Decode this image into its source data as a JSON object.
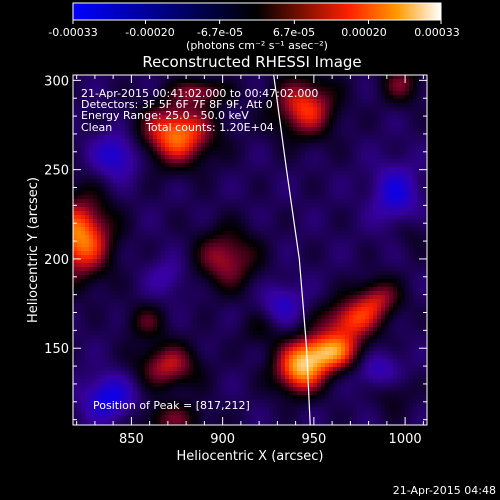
{
  "chart_data": {
    "type": "heatmap",
    "title": "Reconstructed RHESSI Image",
    "xlabel": "Heliocentric X (arcsec)",
    "ylabel": "Heliocentric Y (arcsec)",
    "xlim": [
      818,
      1012
    ],
    "ylim": [
      107,
      303
    ],
    "x_ticks": [
      850,
      900,
      950,
      1000
    ],
    "y_ticks": [
      150,
      200,
      250,
      300
    ],
    "grid": false,
    "colorbar": {
      "range": [
        -0.00033,
        0.00033
      ],
      "ticks": [
        "-0.00033",
        "-0.00020",
        "-6.7e-05",
        "6.7e-05",
        "0.00020",
        "0.00033"
      ],
      "tick_values": [
        -0.00033,
        -0.0002,
        -6.7e-05,
        6.7e-05,
        0.0002,
        0.00033
      ],
      "units_label": "(photons cm⁻² s⁻¹ asec⁻²)"
    },
    "annotations": {
      "time_range": "21-Apr-2015 00:41:02.000 to 00:47:02.000",
      "detectors": "Detectors: 3F 5F 6F 7F 8F 9F, Att 0",
      "energy_range": "Energy Range: 25.0 - 50.0 keV",
      "method": "Clean",
      "total_counts": "Total counts: 1.20E+04",
      "peak": "Position of Peak = [817,212]"
    },
    "limb_curve": [
      [
        928,
        303
      ],
      [
        935,
        250
      ],
      [
        942,
        200
      ],
      [
        946,
        150
      ],
      [
        948,
        107
      ]
    ],
    "sources": [
      {
        "x": 957,
        "y": 148,
        "amp": 0.00033,
        "sx": 14,
        "sy": 8
      },
      {
        "x": 942,
        "y": 136,
        "amp": 0.00029,
        "sx": 10,
        "sy": 9
      },
      {
        "x": 970,
        "y": 166,
        "amp": 0.00024,
        "sx": 11,
        "sy": 8
      },
      {
        "x": 985,
        "y": 178,
        "amp": 0.00019,
        "sx": 9,
        "sy": 8
      },
      {
        "x": 875,
        "y": 270,
        "amp": 0.00032,
        "sx": 14,
        "sy": 12
      },
      {
        "x": 945,
        "y": 285,
        "amp": 0.00026,
        "sx": 12,
        "sy": 12
      },
      {
        "x": 888,
        "y": 294,
        "amp": 0.00017,
        "sx": 10,
        "sy": 5
      },
      {
        "x": 822,
        "y": 212,
        "amp": 0.00033,
        "sx": 12,
        "sy": 16
      },
      {
        "x": 902,
        "y": 200,
        "amp": 0.0002,
        "sx": 12,
        "sy": 12
      },
      {
        "x": 870,
        "y": 140,
        "amp": 0.00021,
        "sx": 12,
        "sy": 9
      },
      {
        "x": 858,
        "y": 165,
        "amp": 0.00012,
        "sx": 8,
        "sy": 7
      },
      {
        "x": 872,
        "y": 110,
        "amp": 0.00014,
        "sx": 14,
        "sy": 7
      },
      {
        "x": 998,
        "y": 298,
        "amp": 0.00015,
        "sx": 8,
        "sy": 8
      },
      {
        "x": 993,
        "y": 125,
        "amp": 8e-05,
        "sx": 8,
        "sy": 8
      },
      {
        "x": 1003,
        "y": 215,
        "amp": 6e-05,
        "sx": 7,
        "sy": 8
      },
      {
        "x": 920,
        "y": 160,
        "amp": 7e-05,
        "sx": 8,
        "sy": 7
      },
      {
        "x": 842,
        "y": 258,
        "amp": -0.00018,
        "sx": 9,
        "sy": 9
      },
      {
        "x": 838,
        "y": 122,
        "amp": -0.0002,
        "sx": 10,
        "sy": 9
      },
      {
        "x": 995,
        "y": 236,
        "amp": -0.00017,
        "sx": 9,
        "sy": 12
      },
      {
        "x": 933,
        "y": 175,
        "amp": -0.00013,
        "sx": 8,
        "sy": 8
      },
      {
        "x": 870,
        "y": 190,
        "amp": -9e-05,
        "sx": 8,
        "sy": 8
      },
      {
        "x": 985,
        "y": 138,
        "amp": -0.00014,
        "sx": 9,
        "sy": 8
      }
    ]
  },
  "footer": {
    "timestamp": "21-Apr-2015 04:48"
  }
}
